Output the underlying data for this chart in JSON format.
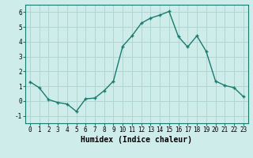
{
  "x": [
    0,
    1,
    2,
    3,
    4,
    5,
    6,
    7,
    8,
    9,
    10,
    11,
    12,
    13,
    14,
    15,
    16,
    17,
    18,
    19,
    20,
    21,
    22,
    23
  ],
  "y": [
    1.3,
    0.9,
    0.1,
    -0.1,
    -0.2,
    -0.7,
    0.15,
    0.2,
    0.7,
    1.35,
    3.7,
    4.4,
    5.25,
    5.6,
    5.8,
    6.05,
    4.35,
    3.65,
    4.4,
    3.35,
    1.35,
    1.05,
    0.9,
    0.3
  ],
  "line_color": "#1a7a6e",
  "marker": "+",
  "marker_size": 3,
  "bg_color": "#ceecea",
  "grid_color": "#b0d5d2",
  "xlabel": "Humidex (Indice chaleur)",
  "xlim": [
    -0.5,
    23.5
  ],
  "ylim": [
    -1.5,
    6.5
  ],
  "yticks": [
    -1,
    0,
    1,
    2,
    3,
    4,
    5,
    6
  ],
  "xticks": [
    0,
    1,
    2,
    3,
    4,
    5,
    6,
    7,
    8,
    9,
    10,
    11,
    12,
    13,
    14,
    15,
    16,
    17,
    18,
    19,
    20,
    21,
    22,
    23
  ],
  "xtick_labels": [
    "0",
    "1",
    "2",
    "3",
    "4",
    "5",
    "6",
    "7",
    "8",
    "9",
    "10",
    "11",
    "12",
    "13",
    "14",
    "15",
    "16",
    "17",
    "18",
    "19",
    "20",
    "21",
    "22",
    "23"
  ],
  "tick_fontsize": 5.5,
  "xlabel_fontsize": 7,
  "line_width": 1.0
}
